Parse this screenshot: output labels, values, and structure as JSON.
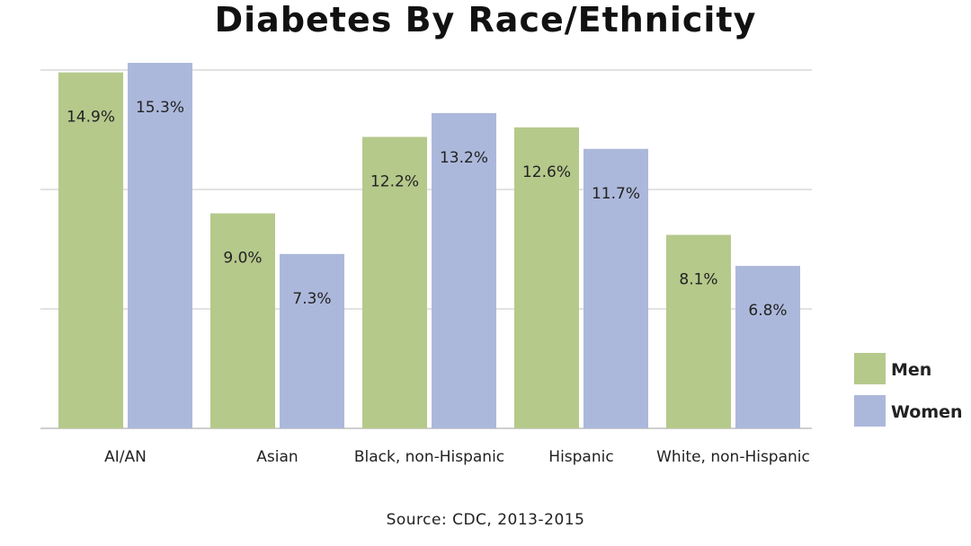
{
  "chart_data": {
    "type": "bar",
    "title": "Diabetes By Race/Ethnicity",
    "source": "Source: CDC, 2013-2015",
    "categories": [
      "AI/AN",
      "Asian",
      "Black, non-Hispanic",
      "Hispanic",
      "White, non-Hispanic"
    ],
    "series": [
      {
        "name": "Men",
        "color": "#b5c98b",
        "values": [
          14.9,
          9.0,
          12.2,
          12.6,
          8.1
        ],
        "labels": [
          "14.9%",
          "9.0%",
          "12.2%",
          "12.6%",
          "8.1%"
        ]
      },
      {
        "name": "Women",
        "color": "#acb8db",
        "values": [
          15.3,
          7.3,
          13.2,
          11.7,
          6.8
        ],
        "labels": [
          "15.3%",
          "7.3%",
          "13.2%",
          "11.7%",
          "6.8%"
        ]
      }
    ],
    "ylim": [
      0,
      15.3
    ],
    "gridlines": [
      5,
      10,
      15
    ],
    "grid": true,
    "legend": "right",
    "xlabel": "",
    "ylabel": ""
  }
}
